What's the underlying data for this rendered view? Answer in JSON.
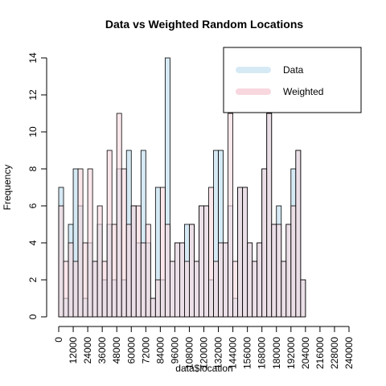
{
  "chart_data": {
    "type": "bar",
    "title": "Data vs Weighted Random Locations",
    "xlabel": "data$location",
    "ylabel": "Frequency",
    "xlim": [
      0,
      240000
    ],
    "ylim": [
      0,
      14
    ],
    "bin_width": 4000,
    "x_ticks": [
      0,
      12000,
      24000,
      36000,
      48000,
      60000,
      72000,
      84000,
      96000,
      108000,
      120000,
      132000,
      144000,
      156000,
      168000,
      180000,
      192000,
      204000,
      216000,
      228000,
      240000
    ],
    "y_ticks": [
      0,
      2,
      4,
      6,
      8,
      10,
      12,
      14
    ],
    "grid": false,
    "legend_position": "top-right",
    "series": [
      {
        "name": "Data",
        "color": "#d6eaf5",
        "values": [
          7,
          1,
          5,
          8,
          6,
          1,
          4,
          3,
          5,
          2,
          5,
          2,
          8,
          2,
          9,
          6,
          4,
          9,
          4,
          1,
          7,
          2,
          14,
          3,
          4,
          4,
          5,
          5,
          3,
          6,
          6,
          2,
          9,
          9,
          4,
          6,
          1,
          7,
          7,
          4,
          3,
          4,
          8,
          11,
          5,
          6,
          3,
          5,
          8,
          9,
          2,
          0
        ]
      },
      {
        "name": "Weighted",
        "color": "#f8d7de",
        "values": [
          6,
          3,
          4,
          3,
          8,
          4,
          8,
          3,
          6,
          3,
          9,
          5,
          11,
          8,
          5,
          6,
          6,
          4,
          5,
          1,
          2,
          7,
          5,
          3,
          4,
          4,
          3,
          5,
          3,
          6,
          6,
          7,
          3,
          4,
          4,
          11,
          3,
          7,
          7,
          4,
          3,
          4,
          8,
          11,
          5,
          5,
          3,
          5,
          6,
          9,
          2,
          0
        ]
      }
    ]
  }
}
